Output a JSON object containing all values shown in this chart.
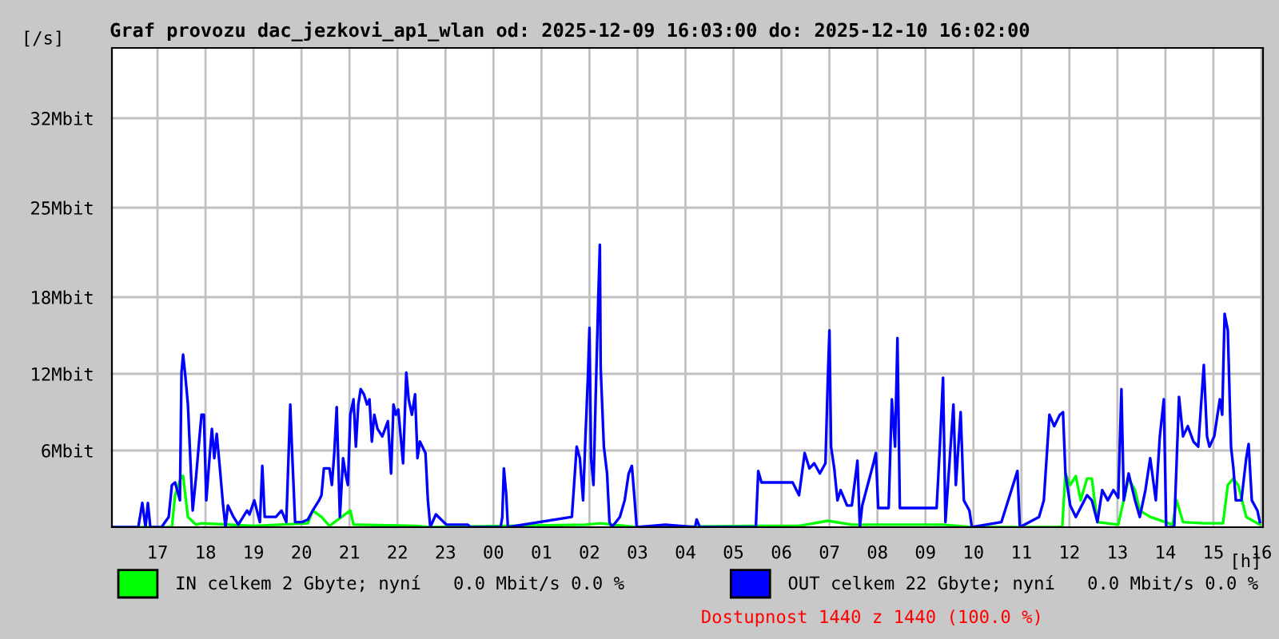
{
  "chart_data": {
    "type": "line",
    "title": "Graf provozu dac_jezkovi_ap1_wlan od: 2025-12-09 16:03:00 do: 2025-12-10 16:02:00",
    "xlabel": "[h]",
    "ylabel": "[/s]",
    "xlim": [
      "2025-12-09T16:03",
      "2025-12-10T16:02"
    ],
    "xticks": [
      {
        "value": "2025-12-09T17:00",
        "label": "17"
      },
      {
        "value": "2025-12-09T18:00",
        "label": "18"
      },
      {
        "value": "2025-12-09T19:00",
        "label": "19"
      },
      {
        "value": "2025-12-09T20:00",
        "label": "20"
      },
      {
        "value": "2025-12-09T21:00",
        "label": "21"
      },
      {
        "value": "2025-12-09T22:00",
        "label": "22"
      },
      {
        "value": "2025-12-09T23:00",
        "label": "23"
      },
      {
        "value": "2025-12-10T00:00",
        "label": "00"
      },
      {
        "value": "2025-12-10T01:00",
        "label": "01"
      },
      {
        "value": "2025-12-10T02:00",
        "label": "02"
      },
      {
        "value": "2025-12-10T03:00",
        "label": "03"
      },
      {
        "value": "2025-12-10T04:00",
        "label": "04"
      },
      {
        "value": "2025-12-10T05:00",
        "label": "05"
      },
      {
        "value": "2025-12-10T06:00",
        "label": "06"
      },
      {
        "value": "2025-12-10T07:00",
        "label": "07"
      },
      {
        "value": "2025-12-10T08:00",
        "label": "08"
      },
      {
        "value": "2025-12-10T09:00",
        "label": "09"
      },
      {
        "value": "2025-12-10T10:00",
        "label": "10"
      },
      {
        "value": "2025-12-10T11:00",
        "label": "11"
      },
      {
        "value": "2025-12-10T12:00",
        "label": "12"
      },
      {
        "value": "2025-12-10T13:00",
        "label": "13"
      },
      {
        "value": "2025-12-10T14:00",
        "label": "14"
      },
      {
        "value": "2025-12-10T15:00",
        "label": "15"
      },
      {
        "value": "2025-12-10T16:00",
        "label": "16"
      }
    ],
    "ylim": [
      0,
      37.5
    ],
    "yticks": [
      {
        "value": 6,
        "label": "6Mbit"
      },
      {
        "value": 12,
        "label": "12Mbit"
      },
      {
        "value": 18,
        "label": "18Mbit"
      },
      {
        "value": 25,
        "label": "25Mbit"
      },
      {
        "value": 32,
        "label": "32Mbit"
      }
    ],
    "grid": true,
    "legend": "bottom",
    "line_style": "solid",
    "marker": "none",
    "series": [
      {
        "name": "IN celkem 2 Gbyte; nyní   0.0 Mbit/s 0.0 %",
        "color": "#00ff00",
        "x": [
          "2025-12-09T16:03",
          "2025-12-09T17:18",
          "2025-12-09T17:22",
          "2025-12-09T17:30",
          "2025-12-09T17:32",
          "2025-12-09T17:38",
          "2025-12-09T17:48",
          "2025-12-09T17:55",
          "2025-12-09T19:01",
          "2025-12-09T20:08",
          "2025-12-09T20:14",
          "2025-12-09T20:25",
          "2025-12-09T20:35",
          "2025-12-09T21:01",
          "2025-12-09T21:05",
          "2025-12-09T21:11",
          "2025-12-09T22:22",
          "2025-12-09T22:41",
          "2025-12-10T01:55",
          "2025-12-10T02:14",
          "2025-12-10T02:59",
          "2025-12-10T05:31",
          "2025-12-10T06:22",
          "2025-12-10T06:58",
          "2025-12-10T07:28",
          "2025-12-10T07:58",
          "2025-12-10T08:22",
          "2025-12-10T09:22",
          "2025-12-10T09:58",
          "2025-12-10T11:51",
          "2025-12-10T11:55",
          "2025-12-10T12:01",
          "2025-12-10T12:08",
          "2025-12-10T12:14",
          "2025-12-10T12:22",
          "2025-12-10T12:28",
          "2025-12-10T12:35",
          "2025-12-10T13:01",
          "2025-12-10T13:14",
          "2025-12-10T13:22",
          "2025-12-10T13:28",
          "2025-12-10T13:41",
          "2025-12-10T14:09",
          "2025-12-10T14:14",
          "2025-12-10T14:22",
          "2025-12-10T14:48",
          "2025-12-10T15:12",
          "2025-12-10T15:18",
          "2025-12-10T15:25",
          "2025-12-10T15:31",
          "2025-12-10T15:41",
          "2025-12-10T15:58"
        ],
        "values": [
          0,
          0,
          2.5,
          4.0,
          4.0,
          0.8,
          0.2,
          0.3,
          0.1,
          0.3,
          1.3,
          0.8,
          0.1,
          1.3,
          0.2,
          0.2,
          0.1,
          0,
          0.2,
          0.3,
          0,
          0.1,
          0.1,
          0.5,
          0.2,
          0.2,
          0.2,
          0.2,
          0,
          0,
          4.2,
          3.3,
          4.0,
          2.1,
          3.8,
          3.8,
          0.4,
          0.2,
          3.8,
          2.9,
          1.3,
          0.8,
          0.2,
          2.1,
          0.4,
          0.3,
          0.3,
          3.3,
          3.8,
          3.3,
          0.8,
          0.2
        ]
      },
      {
        "name": "OUT celkem 22 Gbyte; nyní   0.0 Mbit/s 0.0 %",
        "color": "#0000ff",
        "x": [
          "2025-12-09T16:03",
          "2025-12-09T16:36",
          "2025-12-09T16:41",
          "2025-12-09T16:45",
          "2025-12-09T16:48",
          "2025-12-09T16:51",
          "2025-12-09T17:05",
          "2025-12-09T17:14",
          "2025-12-09T17:18",
          "2025-12-09T17:22",
          "2025-12-09T17:28",
          "2025-12-09T17:30",
          "2025-12-09T17:32",
          "2025-12-09T17:35",
          "2025-12-09T17:38",
          "2025-12-09T17:41",
          "2025-12-09T17:44",
          "2025-12-09T17:48",
          "2025-12-09T17:52",
          "2025-12-09T17:55",
          "2025-12-09T17:58",
          "2025-12-09T18:01",
          "2025-12-09T18:05",
          "2025-12-09T18:08",
          "2025-12-09T18:11",
          "2025-12-09T18:14",
          "2025-12-09T18:18",
          "2025-12-09T18:22",
          "2025-12-09T18:25",
          "2025-12-09T18:28",
          "2025-12-09T18:35",
          "2025-12-09T18:41",
          "2025-12-09T18:52",
          "2025-12-09T18:55",
          "2025-12-09T19:01",
          "2025-12-09T19:08",
          "2025-12-09T19:11",
          "2025-12-09T19:14",
          "2025-12-09T19:28",
          "2025-12-09T19:35",
          "2025-12-09T19:41",
          "2025-12-09T19:46",
          "2025-12-09T19:48",
          "2025-12-09T19:52",
          "2025-12-09T20:01",
          "2025-12-09T20:08",
          "2025-12-09T20:14",
          "2025-12-09T20:22",
          "2025-12-09T20:25",
          "2025-12-09T20:28",
          "2025-12-09T20:35",
          "2025-12-09T20:38",
          "2025-12-09T20:41",
          "2025-12-09T20:44",
          "2025-12-09T20:48",
          "2025-12-09T20:52",
          "2025-12-09T20:55",
          "2025-12-09T20:58",
          "2025-12-09T21:01",
          "2025-12-09T21:05",
          "2025-12-09T21:08",
          "2025-12-09T21:11",
          "2025-12-09T21:14",
          "2025-12-09T21:18",
          "2025-12-09T21:22",
          "2025-12-09T21:25",
          "2025-12-09T21:28",
          "2025-12-09T21:31",
          "2025-12-09T21:35",
          "2025-12-09T21:41",
          "2025-12-09T21:48",
          "2025-12-09T21:52",
          "2025-12-09T21:55",
          "2025-12-09T21:58",
          "2025-12-09T22:01",
          "2025-12-09T22:07",
          "2025-12-09T22:11",
          "2025-12-09T22:14",
          "2025-12-09T22:18",
          "2025-12-09T22:22",
          "2025-12-09T22:25",
          "2025-12-09T22:28",
          "2025-12-09T22:35",
          "2025-12-09T22:38",
          "2025-12-09T22:41",
          "2025-12-09T22:48",
          "2025-12-09T23:01",
          "2025-12-09T23:28",
          "2025-12-09T23:31",
          "2025-12-10T00:09",
          "2025-12-10T00:11",
          "2025-12-10T00:13",
          "2025-12-10T00:16",
          "2025-12-10T00:18",
          "2025-12-10T01:38",
          "2025-12-10T01:44",
          "2025-12-10T01:48",
          "2025-12-10T01:52",
          "2025-12-10T01:55",
          "2025-12-10T01:58",
          "2025-12-10T02:00",
          "2025-12-10T02:02",
          "2025-12-10T02:05",
          "2025-12-10T02:08",
          "2025-12-10T02:11",
          "2025-12-10T02:13",
          "2025-12-10T02:14",
          "2025-12-10T02:18",
          "2025-12-10T02:22",
          "2025-12-10T02:25",
          "2025-12-10T02:28",
          "2025-12-10T02:38",
          "2025-12-10T02:44",
          "2025-12-10T02:49",
          "2025-12-10T02:53",
          "2025-12-10T02:56",
          "2025-12-10T02:59",
          "2025-12-10T03:35",
          "2025-12-10T04:12",
          "2025-12-10T04:14",
          "2025-12-10T04:18",
          "2025-12-10T05:28",
          "2025-12-10T05:31",
          "2025-12-10T05:35",
          "2025-12-10T05:48",
          "2025-12-10T06:01",
          "2025-12-10T06:14",
          "2025-12-10T06:22",
          "2025-12-10T06:29",
          "2025-12-10T06:35",
          "2025-12-10T06:41",
          "2025-12-10T06:48",
          "2025-12-10T06:55",
          "2025-12-10T06:58",
          "2025-12-10T07:00",
          "2025-12-10T07:02",
          "2025-12-10T07:06",
          "2025-12-10T07:10",
          "2025-12-10T07:14",
          "2025-12-10T07:22",
          "2025-12-10T07:28",
          "2025-12-10T07:35",
          "2025-12-10T07:38",
          "2025-12-10T07:41",
          "2025-12-10T07:55",
          "2025-12-10T07:58",
          "2025-12-10T08:01",
          "2025-12-10T08:14",
          "2025-12-10T08:18",
          "2025-12-10T08:22",
          "2025-12-10T08:25",
          "2025-12-10T08:28",
          "2025-12-10T08:48",
          "2025-12-10T09:14",
          "2025-12-10T09:18",
          "2025-12-10T09:22",
          "2025-12-10T09:25",
          "2025-12-10T09:35",
          "2025-12-10T09:38",
          "2025-12-10T09:44",
          "2025-12-10T09:48",
          "2025-12-10T09:55",
          "2025-12-10T09:58",
          "2025-12-10T10:35",
          "2025-12-10T10:55",
          "2025-12-10T10:58",
          "2025-12-10T11:22",
          "2025-12-10T11:28",
          "2025-12-10T11:35",
          "2025-12-10T11:41",
          "2025-12-10T11:48",
          "2025-12-10T11:52",
          "2025-12-10T11:55",
          "2025-12-10T12:01",
          "2025-12-10T12:08",
          "2025-12-10T12:22",
          "2025-12-10T12:28",
          "2025-12-10T12:35",
          "2025-12-10T12:41",
          "2025-12-10T12:48",
          "2025-12-10T12:55",
          "2025-12-10T13:01",
          "2025-12-10T13:05",
          "2025-12-10T13:08",
          "2025-12-10T13:14",
          "2025-12-10T13:22",
          "2025-12-10T13:28",
          "2025-12-10T13:35",
          "2025-12-10T13:41",
          "2025-12-10T13:48",
          "2025-12-10T13:53",
          "2025-12-10T13:58",
          "2025-12-10T14:01",
          "2025-12-10T14:11",
          "2025-12-10T14:17",
          "2025-12-10T14:22",
          "2025-12-10T14:28",
          "2025-12-10T14:35",
          "2025-12-10T14:41",
          "2025-12-10T14:48",
          "2025-12-10T14:52",
          "2025-12-10T14:55",
          "2025-12-10T15:01",
          "2025-12-10T15:08",
          "2025-12-10T15:11",
          "2025-12-10T15:14",
          "2025-12-10T15:18",
          "2025-12-10T15:22",
          "2025-12-10T15:25",
          "2025-12-10T15:28",
          "2025-12-10T15:35",
          "2025-12-10T15:41",
          "2025-12-10T15:44",
          "2025-12-10T15:48",
          "2025-12-10T15:55",
          "2025-12-10T15:58"
        ],
        "values": [
          0,
          0,
          1.9,
          0,
          1.9,
          0,
          0,
          0.8,
          3.3,
          3.5,
          2.1,
          12.1,
          13.5,
          11.7,
          9.6,
          5.4,
          1.3,
          3.8,
          6.7,
          8.8,
          8.8,
          2.1,
          5.4,
          7.7,
          5.4,
          7.3,
          4.6,
          1.7,
          0,
          1.7,
          0.8,
          0.2,
          1.3,
          1.0,
          2.1,
          0.4,
          4.8,
          0.8,
          0.8,
          1.3,
          0.4,
          9.6,
          6.3,
          0.4,
          0.4,
          0.6,
          1.3,
          2.1,
          2.5,
          4.6,
          4.6,
          3.3,
          5.8,
          9.4,
          0.8,
          5.4,
          4.2,
          3.3,
          8.8,
          10.0,
          6.3,
          9.6,
          10.8,
          10.4,
          9.6,
          10.0,
          6.7,
          8.8,
          7.7,
          7.1,
          8.3,
          4.2,
          9.6,
          8.8,
          9.2,
          5.0,
          12.1,
          10.0,
          8.8,
          10.4,
          5.4,
          6.7,
          5.8,
          2.1,
          0,
          1.0,
          0.2,
          0.2,
          0,
          0,
          0.8,
          4.6,
          2.5,
          0,
          0.8,
          6.3,
          5.4,
          2.1,
          7.1,
          11.7,
          15.6,
          5.4,
          3.3,
          10.8,
          17.9,
          22.1,
          12.5,
          6.3,
          4.2,
          0.4,
          0,
          0.8,
          2.1,
          4.2,
          4.8,
          2.5,
          0,
          0.2,
          0,
          0.6,
          0,
          0,
          4.4,
          3.5,
          3.5,
          3.5,
          3.5,
          2.5,
          5.8,
          4.6,
          5.0,
          4.2,
          5.0,
          11.7,
          15.4,
          6.3,
          4.6,
          2.1,
          2.9,
          1.7,
          1.7,
          5.2,
          0,
          1.7,
          5.0,
          5.8,
          1.5,
          1.5,
          10.0,
          6.3,
          14.8,
          1.5,
          1.5,
          1.5,
          6.3,
          11.7,
          0.4,
          9.6,
          3.3,
          9.0,
          2.1,
          1.3,
          0,
          0.4,
          4.4,
          0,
          0.8,
          2.1,
          8.8,
          7.9,
          8.8,
          9.0,
          4.2,
          1.7,
          0.8,
          2.5,
          2.1,
          0.4,
          2.9,
          2.1,
          2.9,
          2.3,
          10.8,
          2.1,
          4.2,
          2.1,
          0.8,
          2.9,
          5.4,
          2.1,
          7.1,
          10.0,
          0,
          0,
          10.2,
          7.1,
          7.9,
          6.7,
          6.3,
          12.7,
          7.1,
          6.3,
          7.1,
          10.0,
          8.8,
          16.7,
          15.4,
          6.3,
          4.6,
          2.1,
          2.1,
          5.4,
          6.5,
          2.1,
          1.3,
          0.4
        ]
      }
    ],
    "annotations": [
      "Dostupnost 1440 z 1440 (100.0 %)"
    ]
  }
}
